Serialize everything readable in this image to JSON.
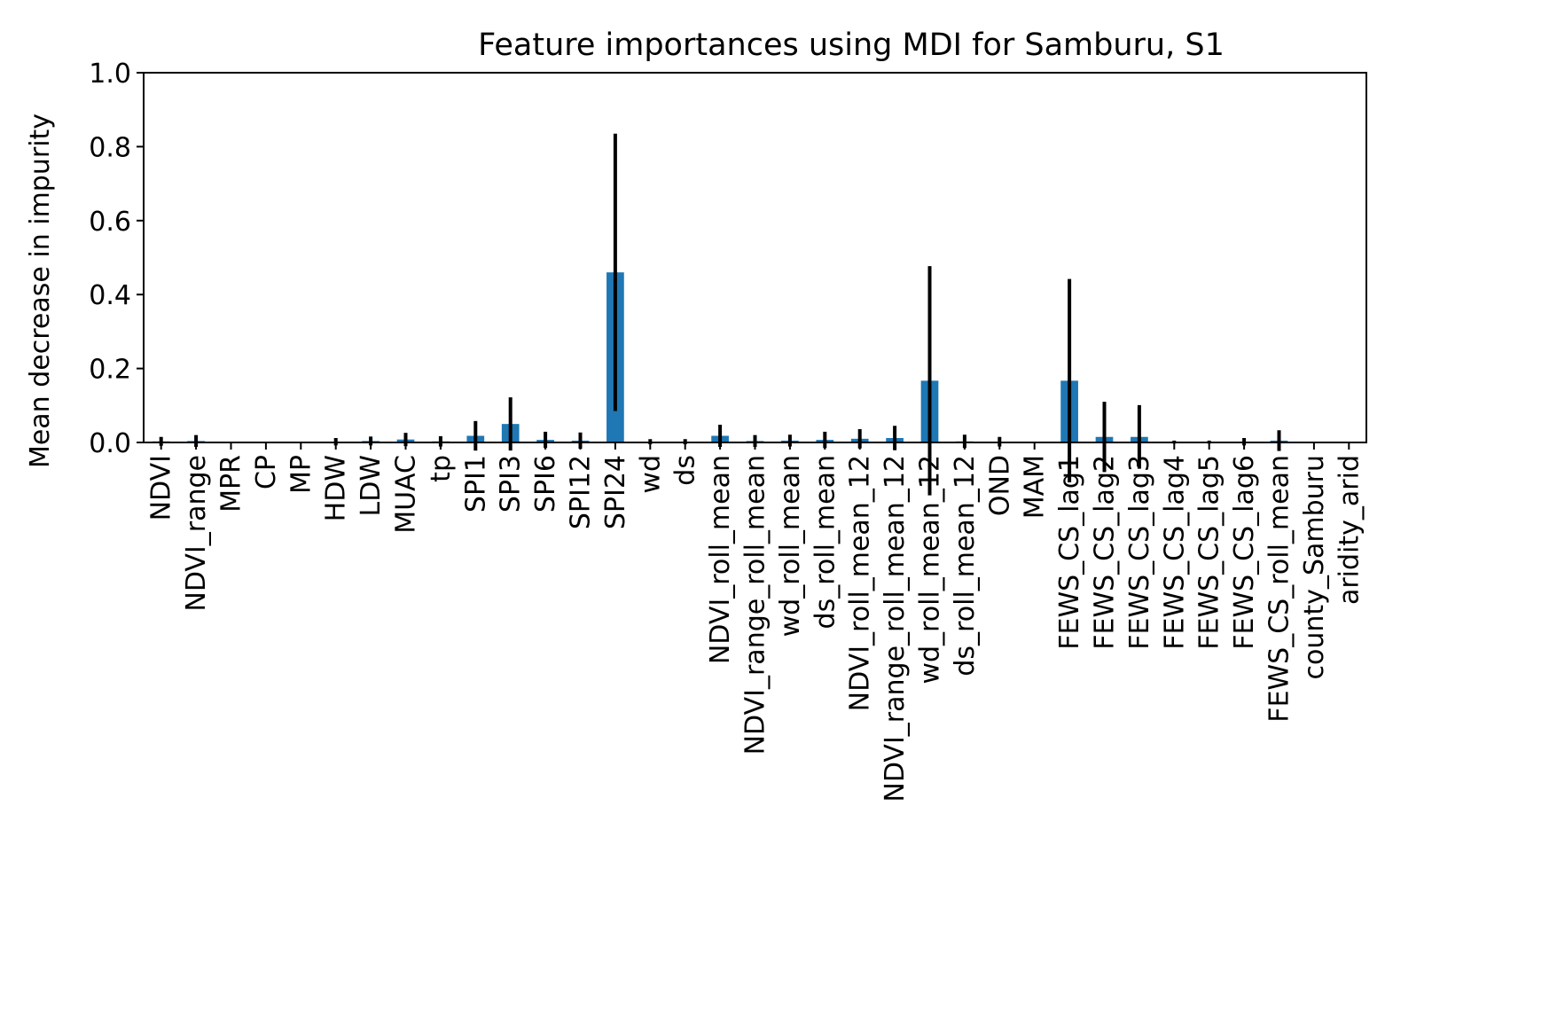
{
  "chart_data": {
    "type": "bar",
    "title": "Feature importances using MDI for Samburu, S1",
    "xlabel": "",
    "ylabel": "Mean decrease in impurity",
    "ylim": [
      0,
      1.0
    ],
    "yticks": [
      "0.0",
      "0.2",
      "0.4",
      "0.6",
      "0.8",
      "1.0"
    ],
    "grid": false,
    "legend": "none",
    "bar_color": "#1f77b4",
    "error_color": "#000000",
    "categories": [
      "NDVI",
      "NDVI_range",
      "MPR",
      "CP",
      "MP",
      "HDW",
      "LDW",
      "MUAC",
      "tp",
      "SPI1",
      "SPI3",
      "SPI6",
      "SPI12",
      "SPI24",
      "wd",
      "ds",
      "NDVI_roll_mean",
      "NDVI_range_roll_mean",
      "wd_roll_mean",
      "ds_roll_mean",
      "NDVI_roll_mean_12",
      "NDVI_range_roll_mean_12",
      "wd_roll_mean_12",
      "ds_roll_mean_12",
      "OND",
      "MAM",
      "FEWS_CS_lag1",
      "FEWS_CS_lag2",
      "FEWS_CS_lag3",
      "FEWS_CS_lag4",
      "FEWS_CS_lag5",
      "FEWS_CS_lag6",
      "FEWS_CS_roll_mean",
      "county_Samburu",
      "aridity_arid"
    ],
    "values": [
      0.003,
      0.004,
      0.0,
      0.0,
      0.0,
      0.002,
      0.004,
      0.008,
      0.003,
      0.018,
      0.05,
      0.007,
      0.005,
      0.46,
      0.002,
      0.002,
      0.018,
      0.004,
      0.005,
      0.007,
      0.01,
      0.012,
      0.167,
      0.003,
      0.002,
      0.0,
      0.167,
      0.015,
      0.015,
      0.001,
      0.001,
      0.002,
      0.005,
      0.0,
      0.0
    ],
    "errors": [
      0.012,
      0.016,
      0.0,
      0.0,
      0.0,
      0.01,
      0.012,
      0.018,
      0.014,
      0.04,
      0.072,
      0.022,
      0.022,
      0.375,
      0.007,
      0.007,
      0.03,
      0.016,
      0.016,
      0.022,
      0.026,
      0.033,
      0.31,
      0.018,
      0.013,
      0.0,
      0.275,
      0.095,
      0.086,
      0.004,
      0.004,
      0.01,
      0.028,
      0.0,
      0.0
    ]
  }
}
